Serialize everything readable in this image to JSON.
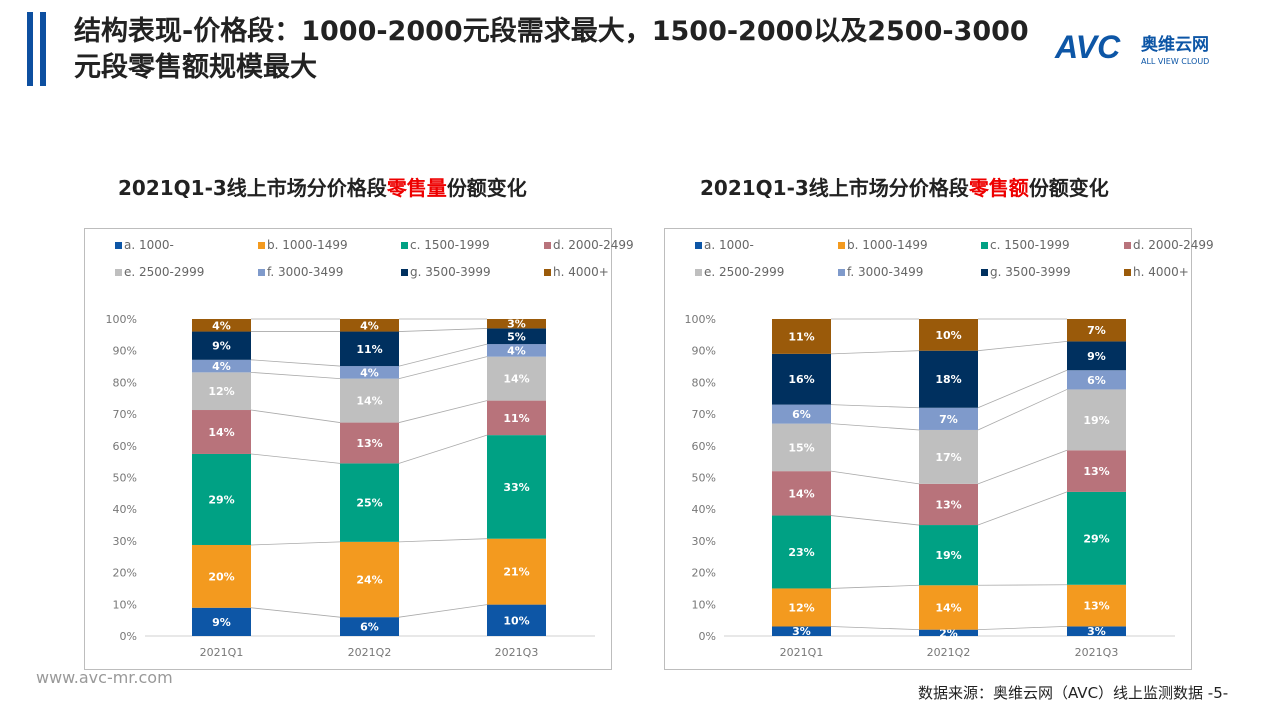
{
  "header": {
    "title": "结构表现-价格段：1000-2000元段需求最大，1500-2000以及2500-3000元段零售额规模最大",
    "logo_text": "AVC",
    "logo_cn": "奥维云网",
    "logo_en": "ALL VIEW CLOUD"
  },
  "footer": {
    "website": "www.avc-mr.com",
    "source": "数据来源：奥维云网（AVC）线上监测数据 -5-"
  },
  "colors": [
    "#0d56a6",
    "#f39a1f",
    "#00a184",
    "#b8737b",
    "#bfbfbf",
    "#7f9acb",
    "#00305f",
    "#9a5a0a"
  ],
  "chart_data": [
    {
      "type": "bar",
      "stacked": true,
      "title_pre": "2021Q1-3线上市场分价格段",
      "title_hl": "零售量",
      "title_post": "份额变化",
      "categories": [
        "2021Q1",
        "2021Q2",
        "2021Q3"
      ],
      "ylim": [
        0,
        100
      ],
      "yticks": [
        "0%",
        "10%",
        "20%",
        "30%",
        "40%",
        "50%",
        "60%",
        "70%",
        "80%",
        "90%",
        "100%"
      ],
      "legend_placement": "top",
      "series": [
        {
          "name": "a. 1000-",
          "values": [
            9,
            6,
            10
          ]
        },
        {
          "name": "b. 1000-1499",
          "values": [
            20,
            24,
            21
          ]
        },
        {
          "name": "c. 1500-1999",
          "values": [
            29,
            25,
            33
          ]
        },
        {
          "name": "d. 2000-2499",
          "values": [
            14,
            13,
            11
          ]
        },
        {
          "name": "e. 2500-2999",
          "values": [
            12,
            14,
            14
          ]
        },
        {
          "name": "f. 3000-3499",
          "values": [
            4,
            4,
            4
          ]
        },
        {
          "name": "g. 3500-3999",
          "values": [
            9,
            11,
            5
          ]
        },
        {
          "name": "h. 4000+",
          "values": [
            4,
            4,
            3
          ]
        }
      ]
    },
    {
      "type": "bar",
      "stacked": true,
      "title_pre": "2021Q1-3线上市场分价格段",
      "title_hl": "零售额",
      "title_post": "份额变化",
      "categories": [
        "2021Q1",
        "2021Q2",
        "2021Q3"
      ],
      "ylim": [
        0,
        100
      ],
      "yticks": [
        "0%",
        "10%",
        "20%",
        "30%",
        "40%",
        "50%",
        "60%",
        "70%",
        "80%",
        "90%",
        "100%"
      ],
      "legend_placement": "top",
      "series": [
        {
          "name": "a. 1000-",
          "values": [
            3,
            2,
            3
          ]
        },
        {
          "name": "b. 1000-1499",
          "values": [
            12,
            14,
            13
          ]
        },
        {
          "name": "c. 1500-1999",
          "values": [
            23,
            19,
            29
          ]
        },
        {
          "name": "d. 2000-2499",
          "values": [
            14,
            13,
            13
          ]
        },
        {
          "name": "e. 2500-2999",
          "values": [
            15,
            17,
            19
          ]
        },
        {
          "name": "f. 3000-3499",
          "values": [
            6,
            7,
            6
          ]
        },
        {
          "name": "g. 3500-3999",
          "values": [
            16,
            18,
            9
          ]
        },
        {
          "name": "h. 4000+",
          "values": [
            11,
            10,
            7
          ]
        }
      ]
    }
  ]
}
